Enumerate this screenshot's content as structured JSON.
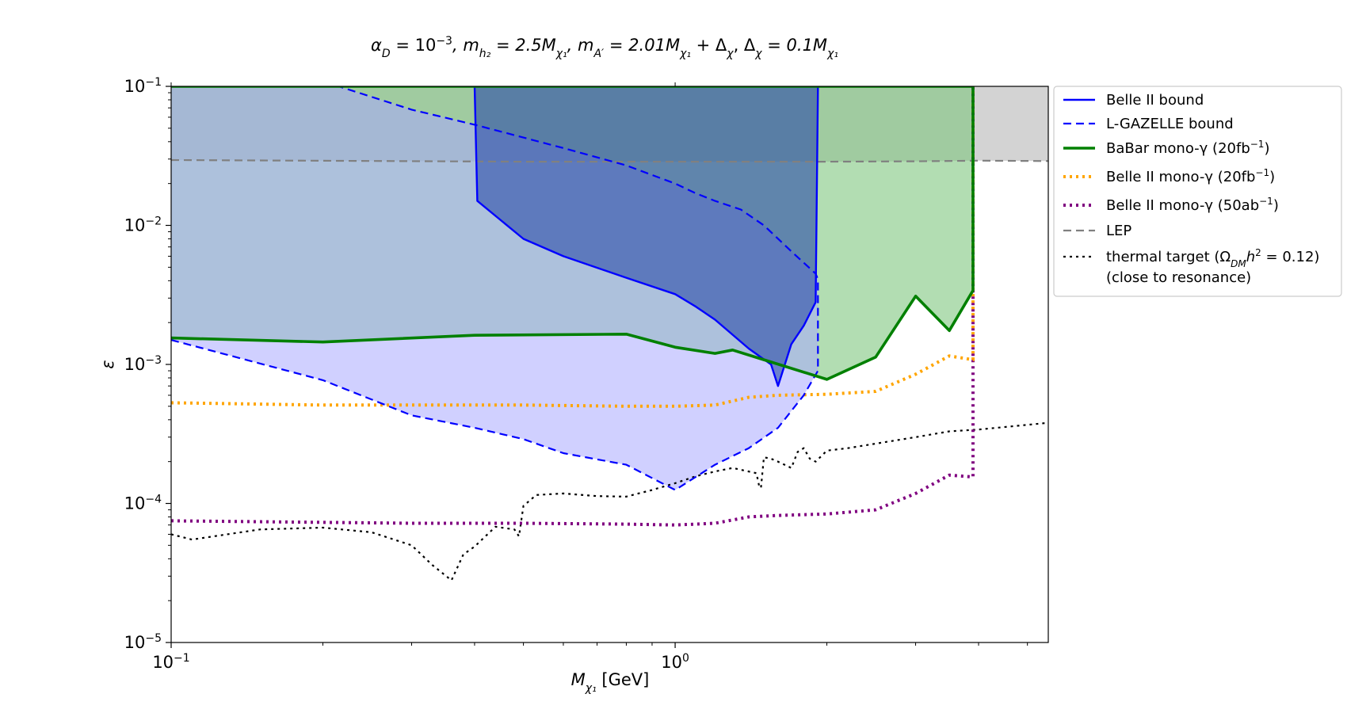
{
  "chart_data": {
    "type": "line",
    "title": "αD = 10⁻³, m_h2 = 2.5M_χ1, m_A' = 2.01M_χ1 + Δχ, Δχ = 0.1M_χ1",
    "title_parts": {
      "p1": "α",
      "p1_sub": "D",
      "p2": " = 10",
      "p2_sup": "−3",
      "p3": ", m",
      "p3_sub": "h₂",
      "p4": " = 2.5M",
      "p4_sub": "χ₁",
      "p5": ", m",
      "p5_sub": "A′",
      "p6": " = 2.01M",
      "p6_sub": "χ₁",
      "p7": " + Δ",
      "p7_sub": "χ",
      "p8": ", Δ",
      "p8_sub": "χ",
      "p9": " = 0.1M",
      "p9_sub": "χ₁"
    },
    "xlabel": "M",
    "xlabel_sub": "χ₁",
    "xlabel_unit": "  [GeV]",
    "ylabel": "ε",
    "x_scale": "log",
    "y_scale": "log",
    "xlim": [
      0.1,
      5.5
    ],
    "ylim": [
      1e-05,
      0.1
    ],
    "x_ticks": [
      {
        "value": 0.1,
        "base": "10",
        "exp": "−1"
      },
      {
        "value": 1,
        "base": "10",
        "exp": "0"
      }
    ],
    "y_ticks": [
      {
        "value": 1e-05,
        "base": "10",
        "exp": "−5"
      },
      {
        "value": 0.0001,
        "base": "10",
        "exp": "−4"
      },
      {
        "value": 0.001,
        "base": "10",
        "exp": "−3"
      },
      {
        "value": 0.01,
        "base": "10",
        "exp": "−2"
      },
      {
        "value": 0.1,
        "base": "10",
        "exp": "−1"
      }
    ],
    "grid": false,
    "legend_position": "outside-right-top",
    "legend": [
      {
        "key": "belle2",
        "text": "Belle II bound",
        "sup": ""
      },
      {
        "key": "lgazelle",
        "text": "L-GAZELLE bound",
        "sup": ""
      },
      {
        "key": "babar",
        "text": "BaBar mono-γ (20fb",
        "sup": "−1",
        "tail": ")"
      },
      {
        "key": "belle2_20",
        "text": "Belle II mono-γ (20fb",
        "sup": "−1",
        "tail": ")"
      },
      {
        "key": "belle2_50",
        "text": "Belle II mono-γ (50ab",
        "sup": "−1",
        "tail": ")"
      },
      {
        "key": "lep",
        "text": "LEP",
        "sup": ""
      },
      {
        "key": "thermal",
        "text": "thermal target (Ω",
        "sub": "DM",
        "mid": "h",
        "sup": "2",
        "tail": " = 0.12)",
        "line2": "(close to resonance)"
      }
    ],
    "series": [
      {
        "key": "belle2",
        "color": "#0000ff",
        "style": "solid",
        "fill": "#2a4ba8",
        "fill_opacity": 0.75,
        "x": [
          0.4,
          0.405,
          0.5,
          0.6,
          0.8,
          1.0,
          1.1,
          1.2,
          1.4,
          1.55,
          1.6,
          1.7,
          1.8,
          1.9,
          1.92
        ],
        "y": [
          0.1,
          0.015,
          0.008,
          0.006,
          0.0042,
          0.0032,
          0.0026,
          0.0021,
          0.0013,
          0.001,
          0.0007,
          0.0014,
          0.0019,
          0.0028,
          0.1
        ]
      },
      {
        "key": "lgazelle",
        "color": "#0000ff",
        "style": "dashed",
        "fill": "#aaaaff",
        "fill_opacity": 0.95,
        "x": [
          0.1,
          0.2,
          0.3,
          0.4,
          0.5,
          0.6,
          0.8,
          1.0,
          1.2,
          1.4,
          1.6,
          1.8,
          1.92,
          1.92,
          1.9,
          1.7,
          1.5,
          1.35,
          1.2,
          1.1,
          1.0,
          0.8,
          0.6,
          0.4,
          0.3,
          0.215
        ],
        "y": [
          0.0015,
          0.00077,
          0.00043,
          0.00035,
          0.00029,
          0.00023,
          0.00019,
          0.000125,
          0.00019,
          0.00025,
          0.00035,
          0.0006,
          0.0009,
          0.0041,
          0.0045,
          0.0065,
          0.01,
          0.013,
          0.015,
          0.017,
          0.02,
          0.027,
          0.036,
          0.053,
          0.068,
          0.1
        ]
      },
      {
        "key": "babar",
        "color": "#008000",
        "style": "solid",
        "fill": "#7fc77f",
        "fill_opacity": 0.6,
        "x": [
          0.1,
          0.2,
          0.4,
          0.8,
          1.0,
          1.2,
          1.3,
          1.5,
          2.0,
          2.5,
          3.0,
          3.5,
          3.9,
          3.9,
          0.1
        ],
        "y": [
          0.00155,
          0.00145,
          0.00162,
          0.00165,
          0.00133,
          0.0012,
          0.00127,
          0.00108,
          0.00078,
          0.00113,
          0.0031,
          0.00175,
          0.0034,
          0.1,
          0.1
        ]
      },
      {
        "key": "belle2_20",
        "color": "#ffa500",
        "style": "dotted",
        "x": [
          0.1,
          0.2,
          0.3,
          0.5,
          0.8,
          1.0,
          1.2,
          1.4,
          1.6,
          2.0,
          2.5,
          3.0,
          3.5,
          3.9,
          3.9
        ],
        "y": [
          0.00053,
          0.00051,
          0.00051,
          0.00051,
          0.0005,
          0.0005,
          0.00051,
          0.00058,
          0.0006,
          0.00061,
          0.00064,
          0.00085,
          0.00115,
          0.00108,
          0.1
        ]
      },
      {
        "key": "belle2_50",
        "color": "#800080",
        "style": "dotted",
        "x": [
          0.1,
          0.3,
          0.5,
          0.8,
          1.0,
          1.2,
          1.4,
          1.6,
          2.0,
          2.5,
          3.0,
          3.5,
          3.9,
          3.9
        ],
        "y": [
          7.5e-05,
          7.2e-05,
          7.2e-05,
          7.1e-05,
          7e-05,
          7.2e-05,
          8e-05,
          8.2e-05,
          8.4e-05,
          9e-05,
          0.000118,
          0.00016,
          0.000155,
          0.1
        ]
      },
      {
        "key": "lep",
        "color": "#808080",
        "style": "dashed",
        "fill": "#d3d3d3",
        "fill_opacity": 1,
        "x": [
          0.1,
          0.5,
          1.0,
          2.0,
          3.0,
          4.0,
          5.5
        ],
        "y": [
          0.0295,
          0.0287,
          0.0287,
          0.0287,
          0.0289,
          0.0292,
          0.029
        ]
      },
      {
        "key": "thermal",
        "color": "#000000",
        "style": "dotted",
        "x": [
          0.1,
          0.11,
          0.15,
          0.2,
          0.25,
          0.3,
          0.33,
          0.36,
          0.38,
          0.4,
          0.44,
          0.48,
          0.49,
          0.5,
          0.53,
          0.6,
          0.7,
          0.8,
          0.9,
          1.0,
          1.1,
          1.2,
          1.3,
          1.45,
          1.47,
          1.48,
          1.5,
          1.55,
          1.6,
          1.7,
          1.75,
          1.8,
          1.85,
          1.9,
          2.0,
          2.2,
          3.0,
          3.5,
          4.0,
          5.5
        ],
        "y": [
          6e-05,
          5.5e-05,
          6.5e-05,
          6.7e-05,
          6.2e-05,
          5e-05,
          3.6e-05,
          2.8e-05,
          4.3e-05,
          4.9e-05,
          6.8e-05,
          6.5e-05,
          5.8e-05,
          9.6e-05,
          0.000115,
          0.000118,
          0.000113,
          0.000112,
          0.000125,
          0.00014,
          0.000157,
          0.00017,
          0.00018,
          0.000165,
          0.00013,
          0.00013,
          0.000215,
          0.00021,
          0.0002,
          0.00018,
          0.000235,
          0.00025,
          0.00021,
          0.0002,
          0.00024,
          0.00025,
          0.0003,
          0.00033,
          0.00034,
          0.00038
        ]
      }
    ]
  }
}
